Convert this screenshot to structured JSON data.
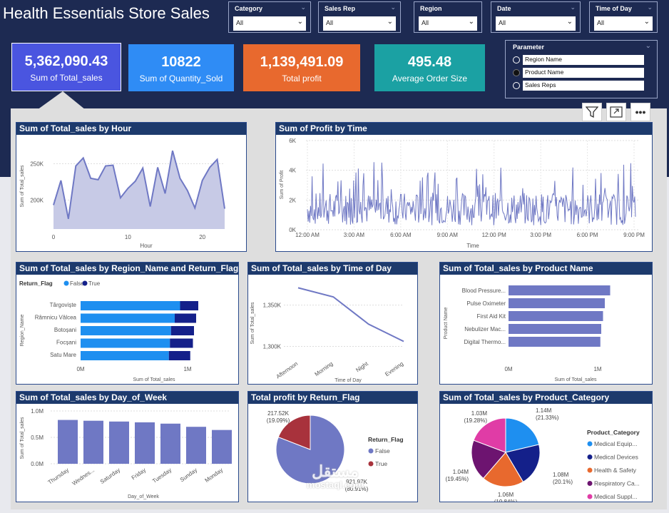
{
  "header": {
    "title": "Health Essentials Store Sales"
  },
  "slicers": [
    {
      "label": "Category",
      "value": "All"
    },
    {
      "label": "Sales Rep",
      "value": "All"
    },
    {
      "label": "Region",
      "value": "All"
    },
    {
      "label": "Date",
      "value": "All"
    },
    {
      "label": "Time of Day",
      "value": "All"
    }
  ],
  "kpis": [
    {
      "value": "5,362,090.43",
      "caption": "Sum of Total_sales",
      "color": "#4a55e0"
    },
    {
      "value": "10822",
      "caption": "Sum of Quantity_Sold",
      "color": "#2f8cf5"
    },
    {
      "value": "1,139,491.09",
      "caption": "Total profit",
      "color": "#e8692e"
    },
    {
      "value": "495.48",
      "caption": "Average Order Size",
      "color": "#1ba1a3"
    }
  ],
  "parameter": {
    "label": "Parameter",
    "options": [
      "Region Name",
      "Product Name",
      "Sales Reps"
    ],
    "selected": "Product Name"
  },
  "toolbar": {
    "filter_icon": "filter-icon",
    "focus_icon": "focus-mode-icon",
    "more_label": "•••"
  },
  "watermark": {
    "text": "مستقل",
    "sub": "mostaql.com"
  },
  "chart_data": [
    {
      "id": "sales_by_hour",
      "type": "area",
      "title": "Sum of Total_sales by Hour",
      "xlabel": "Hour",
      "ylabel": "Sum of Total_sales",
      "x": [
        0,
        1,
        2,
        3,
        4,
        5,
        6,
        7,
        8,
        9,
        10,
        11,
        12,
        13,
        14,
        15,
        16,
        17,
        18,
        19,
        20,
        21,
        22,
        23
      ],
      "values": [
        193000,
        227000,
        174000,
        247000,
        258000,
        230000,
        228000,
        247000,
        248000,
        203000,
        216000,
        226000,
        244000,
        191000,
        245000,
        209000,
        268000,
        230000,
        213000,
        189000,
        227000,
        245000,
        256000,
        188000
      ],
      "xticks": [
        "0",
        "10",
        "20"
      ],
      "xtick_values": [
        0,
        10,
        20
      ],
      "yticks": [
        "200K",
        "250K"
      ],
      "ytick_values": [
        200000,
        250000
      ],
      "ylim": [
        160000,
        280000
      ],
      "xlim": [
        0,
        23
      ],
      "color": "#6f78c4"
    },
    {
      "id": "profit_by_time",
      "type": "line",
      "title": "Sum of Profit by Time",
      "xlabel": "Time",
      "ylabel": "Sum of Profit",
      "xticks": [
        "12:00 AM",
        "3:00 AM",
        "6:00 AM",
        "9:00 AM",
        "12:00 PM",
        "3:00 PM",
        "6:00 PM",
        "9:00 PM"
      ],
      "yticks": [
        "0K",
        "2K",
        "4K",
        "6K"
      ],
      "ytick_values": [
        0,
        2000,
        4000,
        6000
      ],
      "ylim": [
        0,
        6000
      ],
      "color": "#6f78c4"
    },
    {
      "id": "sales_by_region_return",
      "type": "bar",
      "orientation": "horizontal",
      "stacked": true,
      "title": "Sum of Total_sales by Region_Name and Return_Flag",
      "legend_title": "Return_Flag",
      "xlabel": "Sum of Total_sales",
      "ylabel": "Region_Name",
      "categories": [
        "Târgoviște",
        "Râmnicu Vâlcea",
        "Botoșani",
        "Focșani",
        "Satu Mare"
      ],
      "series": [
        {
          "name": "False",
          "values": [
            930000,
            880000,
            845000,
            835000,
            825000
          ],
          "color": "#1e8ff0"
        },
        {
          "name": "True",
          "values": [
            170000,
            200000,
            215000,
            215000,
            200000
          ],
          "color": "#14208a"
        }
      ],
      "xticks": [
        "0M",
        "1M"
      ],
      "xtick_values": [
        0,
        1000000
      ],
      "xlim": [
        0,
        1200000
      ]
    },
    {
      "id": "sales_by_time_of_day",
      "type": "line",
      "title": "Sum of Total_sales by Time of Day",
      "xlabel": "Time of Day",
      "ylabel": "Sum of Total_sales",
      "categories": [
        "Afternoon",
        "Morning",
        "Night",
        "Evening"
      ],
      "values": [
        1371000,
        1360000,
        1327000,
        1306000
      ],
      "yticks": [
        "1,300K",
        "1,350K"
      ],
      "ytick_values": [
        1300000,
        1350000
      ],
      "ylim": [
        1290000,
        1380000
      ],
      "color": "#6f78c4"
    },
    {
      "id": "sales_by_product",
      "type": "bar",
      "orientation": "horizontal",
      "title": "Sum of Total_sales by Product Name",
      "xlabel": "Sum of Total_sales",
      "ylabel": "Product Name",
      "categories": [
        "Blood Pressure...",
        "Pulse Oximeter",
        "First Aid Kit",
        "Nebulizer Mac...",
        "Digital Thermo..."
      ],
      "values": [
        1140000,
        1080000,
        1060000,
        1040000,
        1030000
      ],
      "xticks": [
        "0M",
        "1M"
      ],
      "xtick_values": [
        0,
        1000000
      ],
      "xlim": [
        0,
        1200000
      ],
      "color": "#6f78c4"
    },
    {
      "id": "sales_by_day",
      "type": "bar",
      "title": "Sum of Total_sales by Day_of_Week",
      "xlabel": "Day_of_Week",
      "ylabel": "Sum of Total_sales",
      "categories": [
        "Thursday",
        "Wednes...",
        "Saturday",
        "Friday",
        "Tuesday",
        "Sunday",
        "Monday"
      ],
      "values": [
        830000,
        815000,
        800000,
        785000,
        760000,
        700000,
        640000
      ],
      "yticks": [
        "0.0M",
        "0.5M",
        "1.0M"
      ],
      "ytick_values": [
        0,
        500000,
        1000000
      ],
      "ylim": [
        0,
        1000000
      ],
      "color": "#6f78c4"
    },
    {
      "id": "profit_by_return",
      "type": "pie",
      "title": "Total profit by Return_Flag",
      "legend_title": "Return_Flag",
      "slices": [
        {
          "name": "False",
          "value": 921970,
          "label": "921.97K",
          "pct": "(80.91%)",
          "color": "#6f78c4"
        },
        {
          "name": "True",
          "value": 217520,
          "label": "217.52K",
          "pct": "(19.09%)",
          "color": "#a8323c"
        }
      ]
    },
    {
      "id": "sales_by_category",
      "type": "pie",
      "title": "Sum of Total_sales by Product_Category",
      "legend_title": "Product_Category",
      "slices": [
        {
          "name": "Medical Equip...",
          "value": 1140000,
          "label": "1.14M",
          "pct": "(21.33%)",
          "color": "#1e8ff0"
        },
        {
          "name": "Medical Devices",
          "value": 1080000,
          "label": "1.08M",
          "pct": "(20.1%)",
          "color": "#14208a"
        },
        {
          "name": "Health & Safety",
          "value": 1060000,
          "label": "1.06M",
          "pct": "(19.84%)",
          "color": "#e8692e"
        },
        {
          "name": "Respiratory Ca...",
          "value": 1040000,
          "label": "1.04M",
          "pct": "(19.45%)",
          "color": "#6d1470"
        },
        {
          "name": "Medical Suppl...",
          "value": 1030000,
          "label": "1.03M",
          "pct": "(19.28%)",
          "color": "#e03ca6"
        }
      ]
    }
  ]
}
